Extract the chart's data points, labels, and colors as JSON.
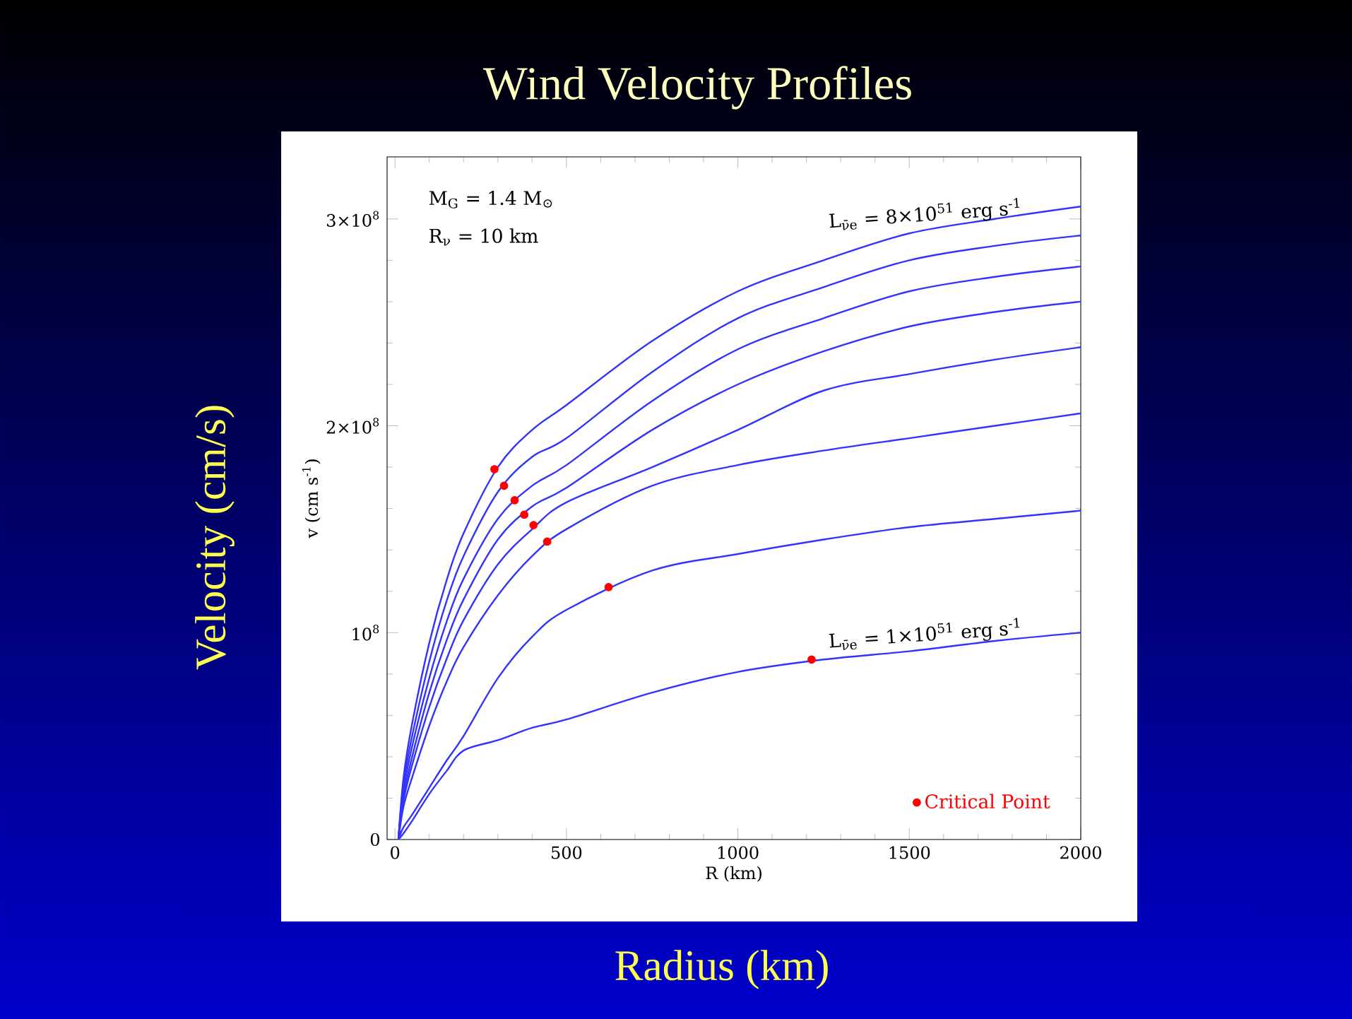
{
  "chart_data": {
    "type": "line",
    "title": "Wind Velocity Profiles",
    "xlabel": "R (km)",
    "ylabel": "v (cm s$^{-1}$)",
    "annotations": [
      "M$_{G}$ = 1.4 M$_{⊙}$",
      "R$_{ν}$ = 10 km",
      {
        "text": "L$_{ν̄e}$ = 8×10$^{51}$ erg s$^{-1}$",
        "x": 1550,
        "y": 295000000
      },
      {
        "text": "L$_{ν̄e}$ = 1×10$^{51}$ erg s$^{-1}$",
        "x": 1550,
        "y": 92000000
      },
      "Velocity  (cm/s)",
      "Radius (km)"
    ],
    "x": [
      10,
      25,
      50,
      100,
      150,
      200,
      300,
      400,
      500,
      750,
      1000,
      1250,
      1500,
      1750,
      2000
    ],
    "xlim": [
      -23,
      2000
    ],
    "xticks": [
      0,
      500,
      1000,
      1500,
      2000
    ],
    "ylim": [
      0,
      330000000
    ],
    "yticks": [
      {
        "value": 0,
        "label": "0"
      },
      {
        "value": 100000000,
        "label": "10$^{8}$"
      },
      {
        "value": 200000000,
        "label": "2×10$^{8}$"
      },
      {
        "value": 300000000,
        "label": "3×10$^{8}$"
      }
    ],
    "line_style": "solid",
    "legend": "bottom right",
    "series": [
      {
        "color": "#3333ff",
        "values": [
          0,
          30000000,
          56000000,
          95000000,
          125000000,
          148000000,
          180000000,
          198000000,
          210000000,
          241000000,
          265000000,
          280000000,
          293000000,
          300000000,
          306000000
        ]
      },
      {
        "color": "#3333ff",
        "values": [
          0,
          27000000,
          50000000,
          86000000,
          115000000,
          137000000,
          168000000,
          185000000,
          194000000,
          226000000,
          252000000,
          267000000,
          280000000,
          287000000,
          292000000
        ]
      },
      {
        "color": "#3333ff",
        "values": [
          0,
          24000000,
          45000000,
          78000000,
          105000000,
          126000000,
          155000000,
          171000000,
          181000000,
          212000000,
          237000000,
          252000000,
          265000000,
          272000000,
          277000000
        ]
      },
      {
        "color": "#3333ff",
        "values": [
          0,
          21000000,
          40000000,
          71000000,
          96000000,
          116000000,
          145000000,
          161000000,
          170000000,
          198000000,
          220000000,
          236000000,
          248000000,
          255000000,
          260000000
        ]
      },
      {
        "color": "#3333ff",
        "values": [
          0,
          19000000,
          36000000,
          64000000,
          87000000,
          106000000,
          133000000,
          150000000,
          163000000,
          180000000,
          198000000,
          217000000,
          225000000,
          232000000,
          238000000
        ]
      },
      {
        "color": "#3333ff",
        "values": [
          0,
          16000000,
          30000000,
          55000000,
          76000000,
          93000000,
          118000000,
          137000000,
          150000000,
          171000000,
          181000000,
          188000000,
          194000000,
          200000000,
          206000000
        ]
      },
      {
        "color": "#3333ff",
        "values": [
          0,
          6000000,
          12000000,
          25000000,
          38000000,
          50000000,
          78000000,
          98000000,
          111000000,
          130000000,
          138000000,
          145000000,
          151000000,
          155000000,
          159000000
        ]
      },
      {
        "color": "#3333ff",
        "values": [
          0,
          3000000,
          9000000,
          22000000,
          33000000,
          43000000,
          48000000,
          54000000,
          58000000,
          71000000,
          81000000,
          87000000,
          91000000,
          96000000,
          100000000
        ]
      },
      {
        "type": "scatter",
        "name": "Critical Point",
        "color": "#ff0000",
        "marker": "circle",
        "x": [
          290,
          318,
          349,
          377,
          404,
          444,
          623,
          1215
        ],
        "values": [
          179000000,
          171000000,
          164000000,
          157000000,
          152000000,
          144000000,
          122000000,
          87000000
        ]
      }
    ]
  }
}
